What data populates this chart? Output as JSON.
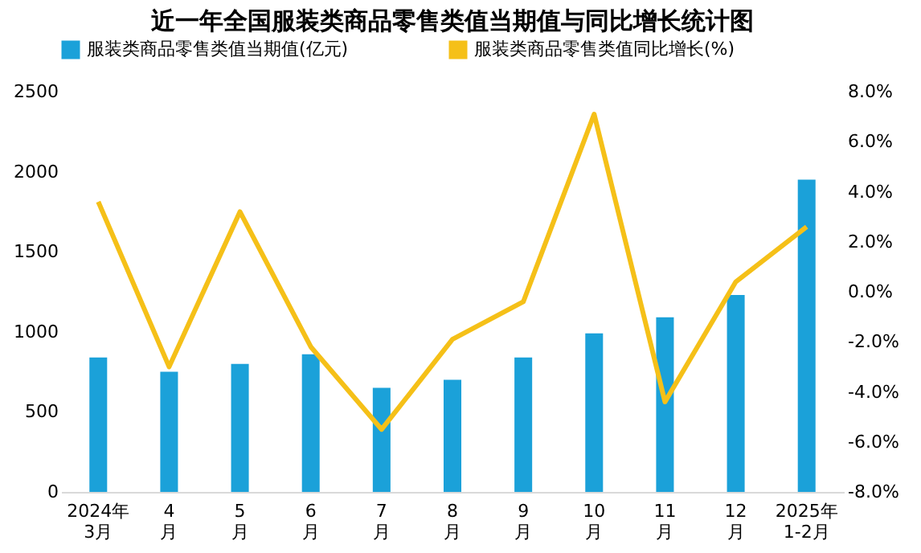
{
  "chart_data": {
    "type": "bar",
    "title": "近一年全国服装类商品零售类值当期值与同比增长统计图",
    "categories": [
      "2024年\n3月",
      "4\n月",
      "5\n月",
      "6\n月",
      "7\n月",
      "8\n月",
      "9\n月",
      "10\n月",
      "11\n月",
      "12\n月",
      "2025年\n1-2月"
    ],
    "series": [
      {
        "name": "服装类商品零售类值当期值(亿元)",
        "color": "#1ba1d9",
        "values": [
          840,
          750,
          800,
          860,
          650,
          700,
          840,
          990,
          1090,
          1230,
          1950
        ]
      },
      {
        "name": "服装类商品零售类值同比增长(%)",
        "type": "line",
        "axis": "y2",
        "color": "#f5c018",
        "values": [
          3.6,
          -3.0,
          3.2,
          -2.2,
          -5.5,
          -1.9,
          -0.4,
          7.1,
          -4.4,
          0.4,
          2.6
        ]
      }
    ],
    "ylim": [
      0,
      2500
    ],
    "yticks": [
      0,
      500,
      1000,
      1500,
      2000,
      2500
    ],
    "y2lim": [
      -8,
      8
    ],
    "y2ticks": [
      {
        "value": -8,
        "label": "-8.0%"
      },
      {
        "value": -6,
        "label": "-6.0%"
      },
      {
        "value": -4,
        "label": "-4.0%"
      },
      {
        "value": -2,
        "label": "-2.0%"
      },
      {
        "value": 0,
        "label": "0.0%"
      },
      {
        "value": 2,
        "label": "2.0%"
      },
      {
        "value": 4,
        "label": "4.0%"
      },
      {
        "value": 6,
        "label": "6.0%"
      },
      {
        "value": 8,
        "label": "8.0%"
      }
    ],
    "legend": "top",
    "grid": false,
    "marker": "none",
    "line_style": "solid"
  }
}
